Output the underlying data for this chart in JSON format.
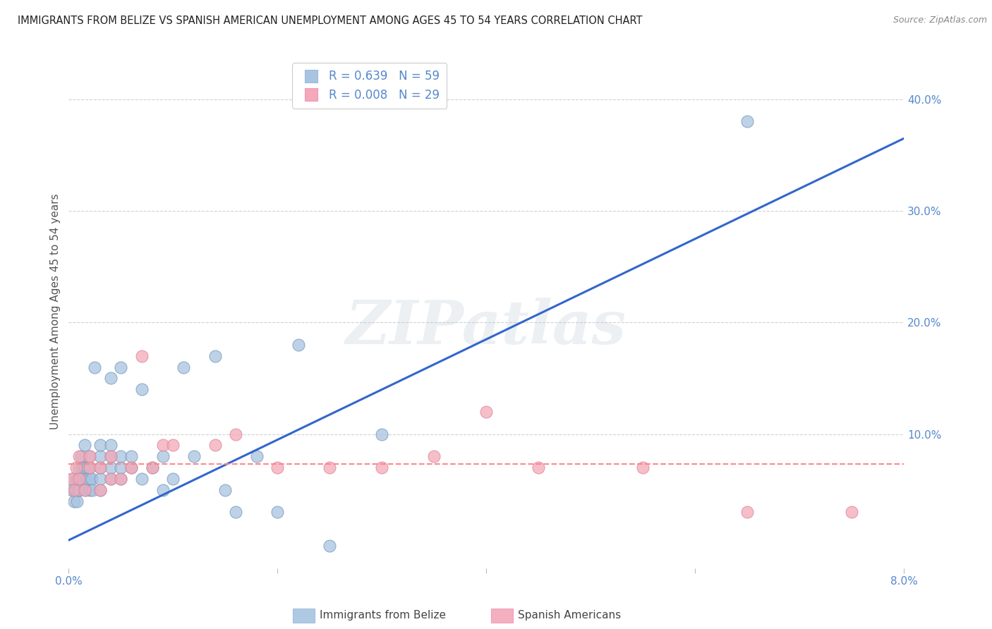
{
  "title": "IMMIGRANTS FROM BELIZE VS SPANISH AMERICAN UNEMPLOYMENT AMONG AGES 45 TO 54 YEARS CORRELATION CHART",
  "source": "Source: ZipAtlas.com",
  "ylabel": "Unemployment Among Ages 45 to 54 years",
  "xlim": [
    0.0,
    0.08
  ],
  "ylim": [
    -0.02,
    0.44
  ],
  "right_yticks": [
    0.1,
    0.2,
    0.3,
    0.4
  ],
  "right_yticklabels": [
    "10.0%",
    "20.0%",
    "30.0%",
    "40.0%"
  ],
  "xticks": [
    0.0,
    0.02,
    0.04,
    0.06,
    0.08
  ],
  "xticklabels": [
    "0.0%",
    "",
    "",
    "",
    "8.0%"
  ],
  "blue_R": 0.639,
  "blue_N": 59,
  "pink_R": 0.008,
  "pink_N": 29,
  "blue_color": "#A8C4E0",
  "pink_color": "#F4A8B8",
  "blue_line_color": "#3366CC",
  "pink_line_color": "#FF8888",
  "blue_line_x0": 0.0,
  "blue_line_y0": 0.005,
  "blue_line_x1": 0.08,
  "blue_line_y1": 0.365,
  "pink_line_x0": 0.0,
  "pink_line_y0": 0.073,
  "pink_line_x1": 0.08,
  "pink_line_y1": 0.073,
  "watermark_text": "ZIPatlas",
  "blue_x": [
    0.0003,
    0.0003,
    0.0005,
    0.0006,
    0.0007,
    0.0008,
    0.0008,
    0.001,
    0.001,
    0.001,
    0.001,
    0.0012,
    0.0013,
    0.0013,
    0.0015,
    0.0015,
    0.0016,
    0.0017,
    0.0018,
    0.002,
    0.002,
    0.002,
    0.002,
    0.0022,
    0.0023,
    0.0025,
    0.003,
    0.003,
    0.003,
    0.003,
    0.003,
    0.004,
    0.004,
    0.004,
    0.004,
    0.004,
    0.005,
    0.005,
    0.005,
    0.005,
    0.006,
    0.006,
    0.007,
    0.007,
    0.008,
    0.009,
    0.009,
    0.01,
    0.011,
    0.012,
    0.014,
    0.015,
    0.016,
    0.018,
    0.02,
    0.022,
    0.025,
    0.03,
    0.065
  ],
  "blue_y": [
    0.06,
    0.05,
    0.04,
    0.05,
    0.05,
    0.06,
    0.04,
    0.05,
    0.06,
    0.07,
    0.05,
    0.08,
    0.06,
    0.07,
    0.07,
    0.09,
    0.05,
    0.06,
    0.07,
    0.05,
    0.06,
    0.07,
    0.08,
    0.06,
    0.05,
    0.16,
    0.05,
    0.06,
    0.07,
    0.08,
    0.09,
    0.06,
    0.07,
    0.08,
    0.09,
    0.15,
    0.06,
    0.07,
    0.08,
    0.16,
    0.07,
    0.08,
    0.06,
    0.14,
    0.07,
    0.05,
    0.08,
    0.06,
    0.16,
    0.08,
    0.17,
    0.05,
    0.03,
    0.08,
    0.03,
    0.18,
    0.0,
    0.1,
    0.38
  ],
  "pink_x": [
    0.0003,
    0.0005,
    0.0007,
    0.001,
    0.001,
    0.0015,
    0.002,
    0.002,
    0.003,
    0.003,
    0.004,
    0.004,
    0.005,
    0.006,
    0.007,
    0.008,
    0.009,
    0.01,
    0.014,
    0.016,
    0.02,
    0.025,
    0.03,
    0.035,
    0.04,
    0.045,
    0.055,
    0.065,
    0.075
  ],
  "pink_y": [
    0.06,
    0.05,
    0.07,
    0.06,
    0.08,
    0.05,
    0.07,
    0.08,
    0.05,
    0.07,
    0.06,
    0.08,
    0.06,
    0.07,
    0.17,
    0.07,
    0.09,
    0.09,
    0.09,
    0.1,
    0.07,
    0.07,
    0.07,
    0.08,
    0.12,
    0.07,
    0.07,
    0.03,
    0.03
  ],
  "background_color": "#FFFFFF",
  "grid_color": "#CCCCCC",
  "title_color": "#222222",
  "axis_label_color": "#555555",
  "tick_color": "#5588CC"
}
